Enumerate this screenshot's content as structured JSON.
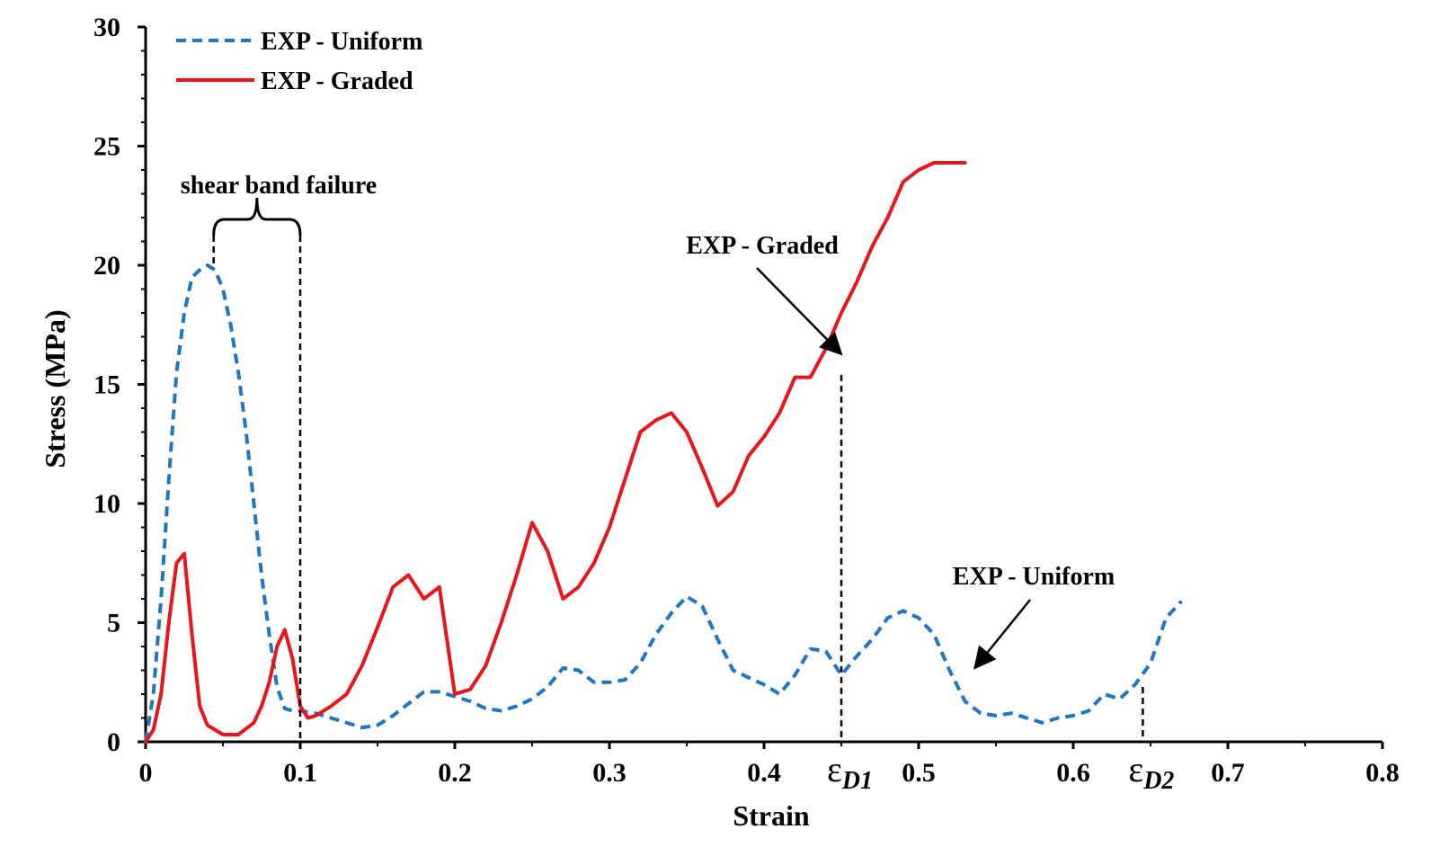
{
  "chart_data": {
    "type": "line",
    "xlabel": "Strain",
    "ylabel": "Stress (MPa)",
    "xlim": [
      0,
      0.8
    ],
    "ylim": [
      0,
      30
    ],
    "x_ticks": [
      "0",
      "0.1",
      "0.2",
      "0.3",
      "0.4",
      "0.5",
      "0.6",
      "0.7",
      "0.8"
    ],
    "y_ticks": [
      "0",
      "5",
      "10",
      "15",
      "20",
      "25",
      "30"
    ],
    "grid": false,
    "legend_position": "top-left",
    "series": [
      {
        "name": "EXP - Uniform",
        "color": "#1f77c4",
        "dash": "dashed",
        "x": [
          0,
          0.005,
          0.01,
          0.015,
          0.02,
          0.025,
          0.03,
          0.035,
          0.04,
          0.045,
          0.05,
          0.055,
          0.06,
          0.065,
          0.07,
          0.075,
          0.08,
          0.085,
          0.09,
          0.095,
          0.1,
          0.11,
          0.12,
          0.13,
          0.14,
          0.15,
          0.16,
          0.17,
          0.18,
          0.19,
          0.2,
          0.21,
          0.22,
          0.23,
          0.24,
          0.25,
          0.26,
          0.27,
          0.28,
          0.29,
          0.3,
          0.31,
          0.32,
          0.33,
          0.34,
          0.35,
          0.36,
          0.37,
          0.38,
          0.39,
          0.4,
          0.41,
          0.42,
          0.43,
          0.44,
          0.45,
          0.46,
          0.47,
          0.48,
          0.49,
          0.5,
          0.51,
          0.52,
          0.53,
          0.54,
          0.55,
          0.56,
          0.57,
          0.58,
          0.59,
          0.6,
          0.61,
          0.62,
          0.63,
          0.64,
          0.65,
          0.66,
          0.67
        ],
        "y": [
          0,
          2,
          6,
          11,
          15.5,
          18,
          19.5,
          19.8,
          20,
          19.8,
          19,
          17.5,
          15.5,
          13,
          10,
          7,
          4.5,
          2.3,
          1.4,
          1.3,
          1.3,
          1.2,
          1.0,
          0.8,
          0.6,
          0.7,
          1.1,
          1.6,
          2.1,
          2.1,
          1.9,
          1.7,
          1.4,
          1.3,
          1.5,
          1.8,
          2.3,
          3.1,
          3.0,
          2.5,
          2.5,
          2.6,
          3.3,
          4.5,
          5.4,
          6.1,
          5.7,
          4.3,
          3.0,
          2.7,
          2.4,
          2.0,
          2.8,
          3.9,
          3.8,
          2.8,
          3.6,
          4.3,
          5.2,
          5.5,
          5.2,
          4.5,
          3.0,
          1.7,
          1.2,
          1.1,
          1.2,
          1.0,
          0.8,
          1.0,
          1.1,
          1.3,
          2.0,
          1.8,
          2.4,
          3.3,
          5.2,
          5.9
        ]
      },
      {
        "name": "EXP - Graded",
        "color": "#e8161b",
        "dash": "solid",
        "x": [
          0,
          0.005,
          0.01,
          0.015,
          0.02,
          0.025,
          0.03,
          0.035,
          0.04,
          0.05,
          0.06,
          0.07,
          0.075,
          0.08,
          0.085,
          0.09,
          0.095,
          0.1,
          0.105,
          0.11,
          0.12,
          0.13,
          0.14,
          0.15,
          0.16,
          0.17,
          0.18,
          0.19,
          0.2,
          0.21,
          0.22,
          0.23,
          0.24,
          0.25,
          0.26,
          0.27,
          0.28,
          0.29,
          0.3,
          0.31,
          0.32,
          0.33,
          0.34,
          0.35,
          0.36,
          0.37,
          0.38,
          0.39,
          0.4,
          0.41,
          0.42,
          0.43,
          0.44,
          0.45,
          0.46,
          0.47,
          0.48,
          0.49,
          0.5,
          0.51,
          0.52,
          0.53
        ],
        "y": [
          0,
          0.5,
          2.0,
          5.0,
          7.5,
          7.9,
          4.5,
          1.5,
          0.7,
          0.3,
          0.3,
          0.8,
          1.5,
          2.5,
          4.0,
          4.7,
          3.5,
          1.5,
          1.0,
          1.1,
          1.5,
          2.0,
          3.2,
          4.8,
          6.5,
          7.0,
          6.0,
          6.5,
          2.0,
          2.2,
          3.2,
          5.0,
          7.0,
          9.2,
          8.0,
          6.0,
          6.5,
          7.5,
          9.0,
          11.0,
          13.0,
          13.5,
          13.8,
          13.0,
          11.5,
          9.9,
          10.5,
          12.0,
          12.8,
          13.8,
          15.3,
          15.3,
          16.5,
          18.0,
          19.3,
          20.8,
          22.0,
          23.5,
          24.0,
          24.3,
          24.3,
          24.3
        ]
      }
    ],
    "annotations": [
      {
        "text": "shear band failure",
        "x_from": 0.044,
        "x_to": 0.1
      },
      {
        "text": "EXP - Graded",
        "points_to_x": 0.45,
        "points_to_y": 16.5
      },
      {
        "text": "EXP - Uniform",
        "points_to_x": 0.535,
        "points_to_y": 3.1
      }
    ],
    "markers": [
      {
        "symbol": "ε",
        "subscript": "D1",
        "x": 0.45,
        "y": 15.4
      },
      {
        "symbol": "ε",
        "subscript": "D2",
        "x": 0.645,
        "y": 2.3
      }
    ]
  }
}
